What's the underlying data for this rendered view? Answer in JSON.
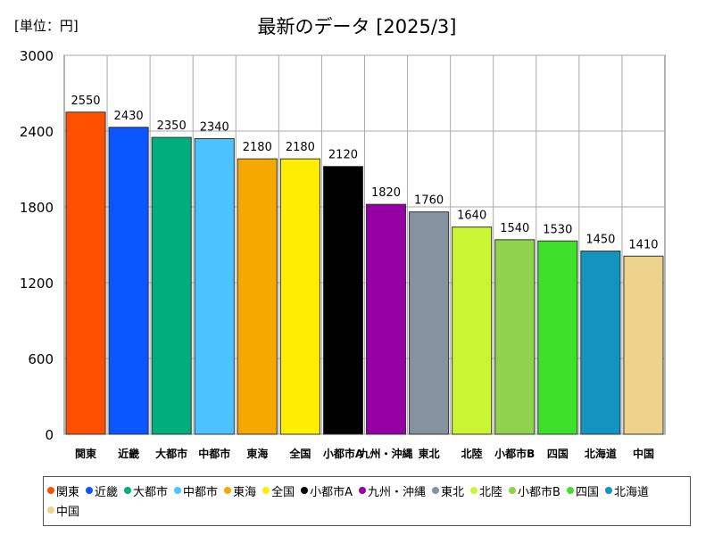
{
  "chart_data": {
    "type": "bar",
    "title": "最新のデータ [2025/3]",
    "unit_label": "[単位：円]",
    "categories": [
      "関東",
      "近畿",
      "大都市",
      "中都市",
      "東海",
      "全国",
      "小都市A",
      "九州・沖縄",
      "東北",
      "北陸",
      "小都市B",
      "四国",
      "北海道",
      "中国"
    ],
    "values": [
      2550,
      2430,
      2350,
      2340,
      2180,
      2180,
      2120,
      1820,
      1760,
      1640,
      1540,
      1530,
      1450,
      1410
    ],
    "colors": [
      "#ff4f00",
      "#0a56ff",
      "#00ad7c",
      "#4cc2ff",
      "#f5a800",
      "#ffee00",
      "#000000",
      "#9400a3",
      "#8593a0",
      "#c9f532",
      "#8fd24b",
      "#3ee02a",
      "#1293c0",
      "#ecd28a"
    ],
    "value_labels": [
      "2550",
      "2430",
      "2350",
      "2340",
      "2180",
      "2180",
      "2120",
      "1820",
      "1760",
      "1640",
      "1540",
      "1530",
      "1450",
      "1410"
    ],
    "y_ticks": [
      "0",
      "600",
      "1200",
      "1800",
      "2400",
      "3000"
    ],
    "ylim": [
      0,
      3000
    ],
    "grid": true,
    "legend_position": "bottom",
    "legend_entries": [
      "関東",
      "近畿",
      "大都市",
      "中都市",
      "東海",
      "全国",
      "小都市A",
      "九州・沖縄",
      "東北",
      "北陸",
      "小都市B",
      "四国",
      "北海道",
      "中国"
    ]
  }
}
